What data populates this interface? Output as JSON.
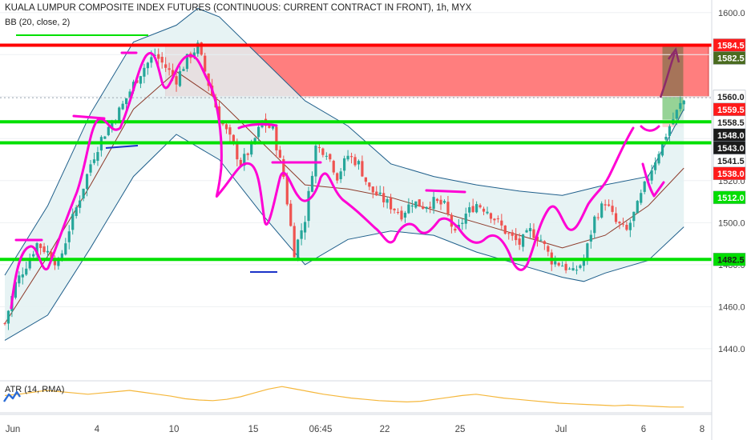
{
  "header": {
    "title": "KUALA LUMPUR COMPOSITE INDEX FUTURES (CONTINUOUS: CURRENT CONTRACT IN FRONT), 1h, MYX",
    "indicator": "BB (20, close, 2)",
    "atr_label": "ATR (14, RMA)"
  },
  "colors": {
    "bull": "#26a69a",
    "bear": "#ef5350",
    "candle_body": "#1b1b1b",
    "bb_band": "#1f5f8b",
    "bb_fill": "#e3f1f2",
    "ma": "#8d3a2a",
    "magenta": "#ff00d4",
    "green_line": "#00e000",
    "red_line": "#ff0000",
    "red_zone": "#ff5a5a",
    "blue_mark": "#1b33c8",
    "atr": "#f5b73b",
    "axis_text": "#444444"
  },
  "chart_data": [
    {
      "type": "candlestick",
      "title": "KUALA LUMPUR COMPOSITE INDEX FUTURES (CONTINUOUS: CURRENT CONTRACT IN FRONT), 1h, MYX",
      "ylim": [
        1427,
        1606
      ],
      "y_ticks": [
        1440.0,
        1460.0,
        1480.0,
        1500.0,
        1520.0,
        1540.0,
        1560.0,
        1580.0,
        1600.0
      ],
      "x_tick_labels": [
        "Jun",
        "4",
        "10",
        "15",
        "06:45",
        "22",
        "25",
        "Jul",
        "6",
        "8"
      ],
      "close_path": [
        {
          "x": 0,
          "y": 1452
        },
        {
          "x": 3,
          "y": 1471
        },
        {
          "x": 6,
          "y": 1480
        },
        {
          "x": 9,
          "y": 1490
        },
        {
          "x": 12,
          "y": 1486
        },
        {
          "x": 15,
          "y": 1480
        },
        {
          "x": 18,
          "y": 1497
        },
        {
          "x": 21,
          "y": 1512
        },
        {
          "x": 24,
          "y": 1528
        },
        {
          "x": 27,
          "y": 1540
        },
        {
          "x": 30,
          "y": 1548
        },
        {
          "x": 33,
          "y": 1556
        },
        {
          "x": 36,
          "y": 1566
        },
        {
          "x": 39,
          "y": 1574
        },
        {
          "x": 42,
          "y": 1580
        },
        {
          "x": 45,
          "y": 1574
        },
        {
          "x": 48,
          "y": 1568
        },
        {
          "x": 51,
          "y": 1578
        },
        {
          "x": 54,
          "y": 1584
        },
        {
          "x": 57,
          "y": 1566
        },
        {
          "x": 60,
          "y": 1550
        },
        {
          "x": 63,
          "y": 1540
        },
        {
          "x": 66,
          "y": 1528
        },
        {
          "x": 69,
          "y": 1536
        },
        {
          "x": 72,
          "y": 1548
        },
        {
          "x": 75,
          "y": 1544
        },
        {
          "x": 78,
          "y": 1522
        },
        {
          "x": 81,
          "y": 1486
        },
        {
          "x": 84,
          "y": 1502
        },
        {
          "x": 87,
          "y": 1536
        },
        {
          "x": 90,
          "y": 1534
        },
        {
          "x": 93,
          "y": 1522
        },
        {
          "x": 96,
          "y": 1532
        },
        {
          "x": 99,
          "y": 1528
        },
        {
          "x": 102,
          "y": 1516
        },
        {
          "x": 105,
          "y": 1512
        },
        {
          "x": 108,
          "y": 1508
        },
        {
          "x": 111,
          "y": 1504
        },
        {
          "x": 114,
          "y": 1510
        },
        {
          "x": 117,
          "y": 1508
        },
        {
          "x": 120,
          "y": 1510
        },
        {
          "x": 123,
          "y": 1508
        },
        {
          "x": 126,
          "y": 1494
        },
        {
          "x": 129,
          "y": 1504
        },
        {
          "x": 132,
          "y": 1509
        },
        {
          "x": 135,
          "y": 1506
        },
        {
          "x": 138,
          "y": 1500
        },
        {
          "x": 141,
          "y": 1494
        },
        {
          "x": 144,
          "y": 1490
        },
        {
          "x": 147,
          "y": 1496
        },
        {
          "x": 150,
          "y": 1492
        },
        {
          "x": 153,
          "y": 1482
        },
        {
          "x": 156,
          "y": 1480
        },
        {
          "x": 159,
          "y": 1476
        },
        {
          "x": 162,
          "y": 1482
        },
        {
          "x": 165,
          "y": 1502
        },
        {
          "x": 168,
          "y": 1510
        },
        {
          "x": 171,
          "y": 1500
        },
        {
          "x": 174,
          "y": 1496
        },
        {
          "x": 177,
          "y": 1508
        },
        {
          "x": 180,
          "y": 1522
        },
        {
          "x": 183,
          "y": 1534
        },
        {
          "x": 186,
          "y": 1546
        },
        {
          "x": 189,
          "y": 1556
        },
        {
          "x": 190,
          "y": 1558
        }
      ],
      "bollinger": {
        "upper": [
          {
            "x": 0,
            "y": 1475
          },
          {
            "x": 12,
            "y": 1508
          },
          {
            "x": 24,
            "y": 1552
          },
          {
            "x": 36,
            "y": 1586
          },
          {
            "x": 48,
            "y": 1594
          },
          {
            "x": 54,
            "y": 1602
          },
          {
            "x": 60,
            "y": 1598
          },
          {
            "x": 72,
            "y": 1578
          },
          {
            "x": 84,
            "y": 1558
          },
          {
            "x": 96,
            "y": 1546
          },
          {
            "x": 108,
            "y": 1528
          },
          {
            "x": 120,
            "y": 1522
          },
          {
            "x": 132,
            "y": 1518
          },
          {
            "x": 144,
            "y": 1515
          },
          {
            "x": 156,
            "y": 1513
          },
          {
            "x": 168,
            "y": 1518
          },
          {
            "x": 180,
            "y": 1522
          },
          {
            "x": 190,
            "y": 1554
          }
        ],
        "lower": [
          {
            "x": 0,
            "y": 1444
          },
          {
            "x": 12,
            "y": 1456
          },
          {
            "x": 24,
            "y": 1488
          },
          {
            "x": 36,
            "y": 1522
          },
          {
            "x": 48,
            "y": 1542
          },
          {
            "x": 60,
            "y": 1530
          },
          {
            "x": 72,
            "y": 1504
          },
          {
            "x": 84,
            "y": 1480
          },
          {
            "x": 96,
            "y": 1492
          },
          {
            "x": 108,
            "y": 1496
          },
          {
            "x": 120,
            "y": 1494
          },
          {
            "x": 132,
            "y": 1486
          },
          {
            "x": 144,
            "y": 1480
          },
          {
            "x": 156,
            "y": 1474
          },
          {
            "x": 162,
            "y": 1472
          },
          {
            "x": 168,
            "y": 1476
          },
          {
            "x": 180,
            "y": 1482
          },
          {
            "x": 190,
            "y": 1498
          }
        ],
        "basis": [
          {
            "x": 0,
            "y": 1452
          },
          {
            "x": 12,
            "y": 1484
          },
          {
            "x": 24,
            "y": 1518
          },
          {
            "x": 36,
            "y": 1554
          },
          {
            "x": 48,
            "y": 1572
          },
          {
            "x": 60,
            "y": 1558
          },
          {
            "x": 72,
            "y": 1538
          },
          {
            "x": 84,
            "y": 1518
          },
          {
            "x": 96,
            "y": 1516
          },
          {
            "x": 108,
            "y": 1512
          },
          {
            "x": 120,
            "y": 1506
          },
          {
            "x": 132,
            "y": 1500
          },
          {
            "x": 144,
            "y": 1494
          },
          {
            "x": 156,
            "y": 1488
          },
          {
            "x": 168,
            "y": 1494
          },
          {
            "x": 180,
            "y": 1508
          },
          {
            "x": 190,
            "y": 1526
          }
        ]
      },
      "horizontal_levels": [
        {
          "value": 1584.5,
          "kind": "red"
        },
        {
          "value": 1548.0,
          "kind": "green"
        },
        {
          "value": 1538.0,
          "kind": "green"
        },
        {
          "value": 1482.5,
          "kind": "green"
        }
      ],
      "price_labels": [
        {
          "value": 1584.5,
          "label": "1584.5",
          "bg": "#ff1a1a",
          "fg": "#ffffff"
        },
        {
          "value": 1582.5,
          "label": "1582.5",
          "bg": "#4a6b1f",
          "fg": "#ffffff"
        },
        {
          "value": 1560.0,
          "label": "1560.0",
          "bg": "#ffffff",
          "fg": "#222222"
        },
        {
          "value": 1559.5,
          "label": "1559.5",
          "bg": "#ff1a1a",
          "fg": "#ffffff"
        },
        {
          "value": 1558.5,
          "label": "1558.5",
          "bg": "#ffffff",
          "fg": "#222222"
        },
        {
          "value": 1548.0,
          "label": "1548.0",
          "bg": "#1b1b1b",
          "fg": "#ffffff"
        },
        {
          "value": 1543.0,
          "label": "1543.0",
          "bg": "#1b1b1b",
          "fg": "#ffffff"
        },
        {
          "value": 1541.5,
          "label": "1541.5",
          "bg": "#ffffff",
          "fg": "#222222"
        },
        {
          "value": 1538.0,
          "label": "1538.0",
          "bg": "#ff1a1a",
          "fg": "#ffffff"
        },
        {
          "value": 1512.0,
          "label": "1512.0",
          "bg": "#00dd00",
          "fg": "#ffffff"
        },
        {
          "value": 1482.5,
          "label": "1482.5",
          "bg": "#00dd00",
          "fg": "#1b1b1b"
        }
      ]
    },
    {
      "type": "line",
      "title": "ATR (14, RMA)",
      "y_tick": "10.0",
      "values": [
        9.8,
        10.0,
        10.3,
        10.6,
        10.4,
        10.2,
        10.0,
        10.2,
        10.4,
        10.6,
        10.3,
        10.0,
        9.7,
        9.3,
        9.1,
        9.0,
        9.2,
        9.6,
        10.2,
        10.8,
        11.2,
        10.8,
        10.4,
        10.0,
        9.7,
        9.4,
        9.2,
        9.0,
        8.9,
        8.8,
        8.9,
        9.2,
        9.5,
        9.8,
        10.0,
        9.7,
        9.4,
        9.2,
        9.0,
        8.8,
        8.6,
        8.5,
        8.4,
        8.3,
        8.2,
        8.3,
        8.2,
        8.1,
        8.0,
        8.0
      ]
    }
  ]
}
